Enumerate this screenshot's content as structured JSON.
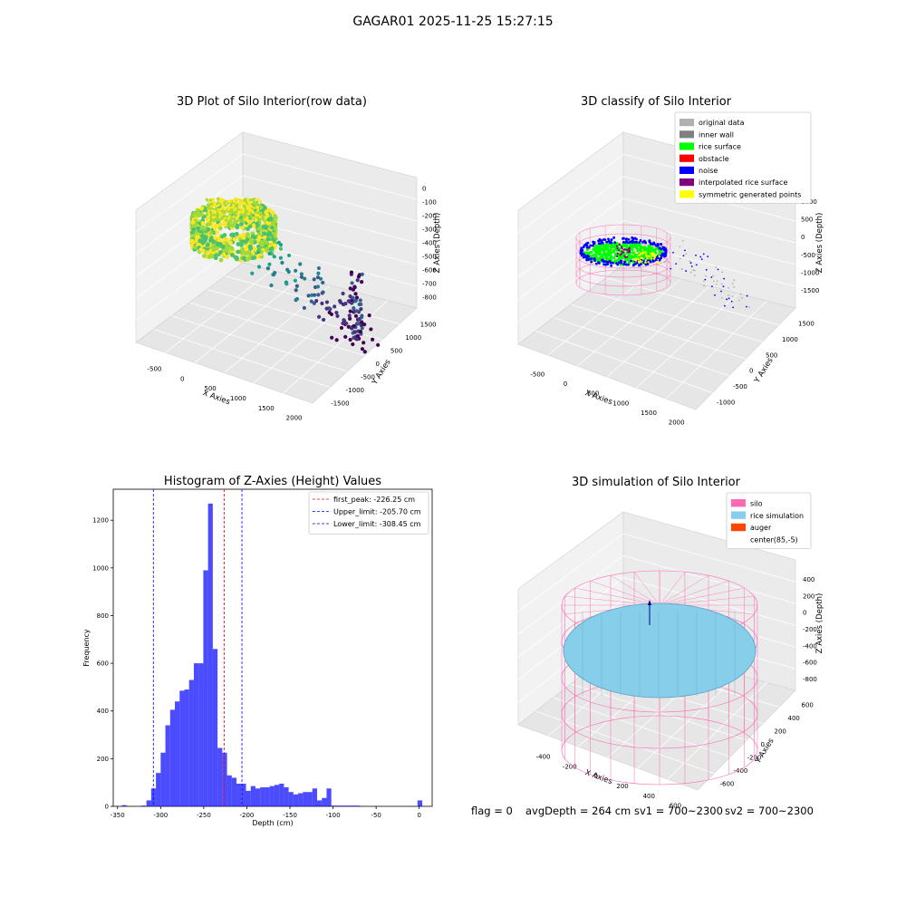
{
  "figure": {
    "title": "GAGAR01 2025-11-25 15:27:15",
    "footer": {
      "flag": "flag = 0",
      "avg_depth": "avgDepth = 264 cm",
      "sv1": "sv1 = 700~2300",
      "sv2": "sv2 = 700~2300"
    }
  },
  "chart_data": [
    {
      "type": "scatter",
      "title": "3D Plot of Silo Interior(row data)",
      "xlabel": "X Axies",
      "ylabel": "Y Axies",
      "zlabel": "Z Axies (Depth)",
      "xticks": [
        "-500",
        "0",
        "500",
        "1000",
        "1500",
        "2000"
      ],
      "yticks": [
        "-1500",
        "-1000",
        "-500",
        "0",
        "500",
        "1000",
        "1500"
      ],
      "zticks": [
        "0",
        "-100",
        "-200",
        "-300",
        "-400",
        "-500",
        "-600",
        "-700",
        "-800"
      ],
      "grid": true,
      "colormap": "viridis"
    },
    {
      "type": "scatter",
      "title": "3D classify of Silo Interior",
      "xlabel": "X Axies",
      "ylabel": "Y Axies",
      "zlabel": "Z Axies (Depth)",
      "xticks": [
        "-500",
        "0",
        "500",
        "1000",
        "1500",
        "2000"
      ],
      "yticks": [
        "-1000",
        "-500",
        "0",
        "500",
        "1000",
        "1500"
      ],
      "zticks": [
        "1000",
        "500",
        "0",
        "-500",
        "-1000",
        "-1500"
      ],
      "grid": true,
      "legend_position": "top-right",
      "legend": [
        {
          "label": "original data",
          "color": "#b0b0b0"
        },
        {
          "label": "inner wall",
          "color": "#808080"
        },
        {
          "label": "rice surface",
          "color": "#00ff00"
        },
        {
          "label": "obstacle",
          "color": "#ff0000"
        },
        {
          "label": "noise",
          "color": "#0000ff"
        },
        {
          "label": "interpolated rice surface",
          "color": "#800080"
        },
        {
          "label": "symmetric generated points",
          "color": "#ffff00"
        }
      ]
    },
    {
      "type": "bar",
      "title": "Histogram of Z-Axies (Height) Values",
      "xlabel": "Depth (cm)",
      "ylabel": "Frequency",
      "xlim": [
        -355,
        15
      ],
      "ylim": [
        0,
        1330
      ],
      "xticks": [
        -350,
        -300,
        -250,
        -200,
        -150,
        -100,
        -50,
        0
      ],
      "yticks": [
        0,
        200,
        400,
        600,
        800,
        1000,
        1200
      ],
      "bar_color": "#0000ff",
      "bin_width": 5.5,
      "bins": [
        {
          "x": -345.0,
          "v": 5
        },
        {
          "x": -322.5,
          "v": 3
        },
        {
          "x": -316.5,
          "v": 25
        },
        {
          "x": -311.0,
          "v": 75
        },
        {
          "x": -305.5,
          "v": 140
        },
        {
          "x": -300.0,
          "v": 225
        },
        {
          "x": -294.5,
          "v": 340
        },
        {
          "x": -289.0,
          "v": 405
        },
        {
          "x": -283.5,
          "v": 440
        },
        {
          "x": -278.0,
          "v": 485
        },
        {
          "x": -272.5,
          "v": 490
        },
        {
          "x": -267.0,
          "v": 530
        },
        {
          "x": -261.5,
          "v": 600
        },
        {
          "x": -256.0,
          "v": 600
        },
        {
          "x": -250.5,
          "v": 990
        },
        {
          "x": -245.0,
          "v": 1270
        },
        {
          "x": -239.5,
          "v": 660
        },
        {
          "x": -234.0,
          "v": 245
        },
        {
          "x": -228.5,
          "v": 225
        },
        {
          "x": -223.0,
          "v": 130
        },
        {
          "x": -217.5,
          "v": 120
        },
        {
          "x": -212.0,
          "v": 95
        },
        {
          "x": -206.5,
          "v": 95
        },
        {
          "x": -201.0,
          "v": 65
        },
        {
          "x": -195.5,
          "v": 85
        },
        {
          "x": -190.0,
          "v": 75
        },
        {
          "x": -184.5,
          "v": 80
        },
        {
          "x": -179.0,
          "v": 80
        },
        {
          "x": -173.5,
          "v": 85
        },
        {
          "x": -168.0,
          "v": 90
        },
        {
          "x": -162.5,
          "v": 95
        },
        {
          "x": -157.0,
          "v": 80
        },
        {
          "x": -151.5,
          "v": 60
        },
        {
          "x": -146.0,
          "v": 50
        },
        {
          "x": -140.5,
          "v": 55
        },
        {
          "x": -135.0,
          "v": 60
        },
        {
          "x": -129.5,
          "v": 60
        },
        {
          "x": -124.0,
          "v": 75
        },
        {
          "x": -118.5,
          "v": 25
        },
        {
          "x": -113.0,
          "v": 35
        },
        {
          "x": -107.5,
          "v": 75
        },
        {
          "x": -102.0,
          "v": 3
        },
        {
          "x": -96.5,
          "v": 3
        },
        {
          "x": -91.0,
          "v": 3
        },
        {
          "x": -85.5,
          "v": 3
        },
        {
          "x": -80.0,
          "v": 3
        },
        {
          "x": -74.5,
          "v": 3
        },
        {
          "x": -2.0,
          "v": 25
        }
      ],
      "lines": [
        {
          "label": "first_peak: -226.25 cm",
          "x": -226.25,
          "color": "#ff0000"
        },
        {
          "label": "Upper_limit: -205.70 cm",
          "x": -205.7,
          "color": "#0000ff"
        },
        {
          "label": "Lower_limit: -308.45 cm",
          "x": -308.45,
          "color": "#0000ff"
        }
      ],
      "legend_position": "top-right"
    },
    {
      "type": "scatter",
      "title": "3D simulation of Silo Interior",
      "xlabel": "X Axies",
      "ylabel": "Y Axies",
      "zlabel": "Z Axies (Depth)",
      "xticks": [
        "-400",
        "-200",
        "0",
        "200",
        "400",
        "600"
      ],
      "yticks": [
        "-600",
        "-400",
        "-200",
        "0",
        "200",
        "400",
        "600"
      ],
      "zticks": [
        "400",
        "200",
        "0",
        "-200",
        "-400",
        "-600",
        "-800"
      ],
      "grid": true,
      "legend_position": "top-right",
      "legend": [
        {
          "label": "silo",
          "color": "#ff69b4"
        },
        {
          "label": "rice simulation",
          "color": "#87ceeb"
        },
        {
          "label": "auger",
          "color": "#ff4500"
        },
        {
          "label": "center(85,-5)",
          "color": ""
        }
      ]
    }
  ]
}
